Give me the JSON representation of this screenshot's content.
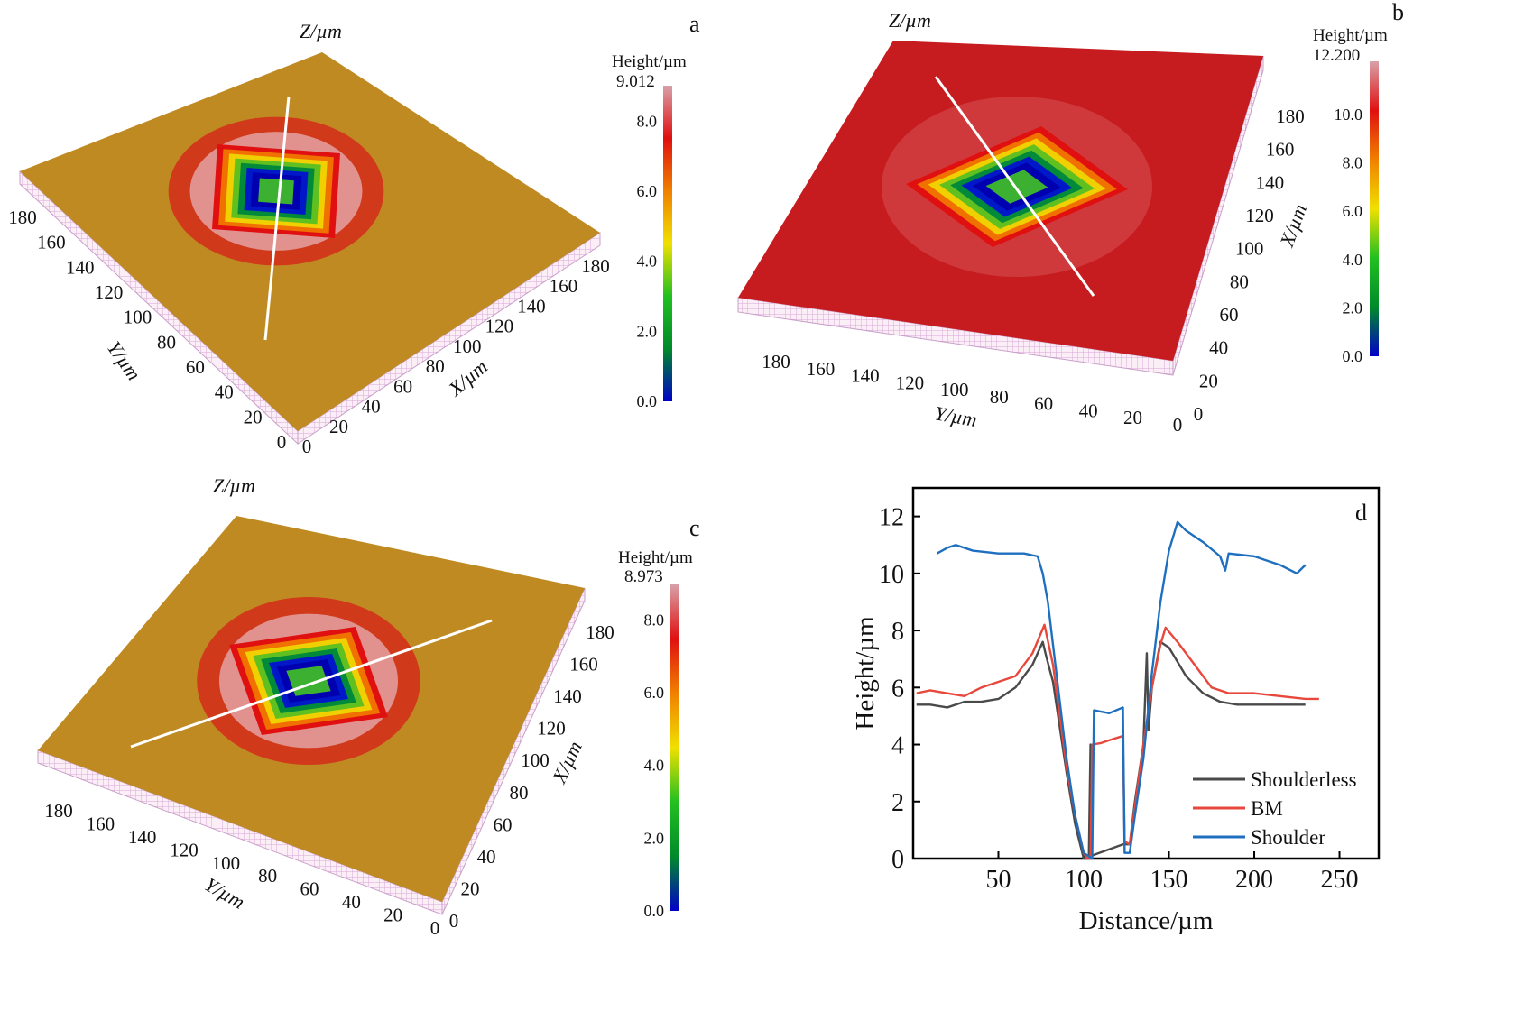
{
  "panels": [
    {
      "id": "a",
      "letter": "a",
      "z_label": "Z/µm",
      "x_label": "X/µm",
      "y_label": "Y/µm",
      "surface_color": "#c08a22",
      "ticks": [
        "0",
        "20",
        "40",
        "60",
        "80",
        "100",
        "120",
        "140",
        "160",
        "180"
      ],
      "colorbar": {
        "title": "Height/µm",
        "max_label": "9.012",
        "ticks": [
          "0.0",
          "2.0",
          "4.0",
          "6.0",
          "8.0"
        ]
      }
    },
    {
      "id": "b",
      "letter": "b",
      "z_label": "Z/µm",
      "x_label": "X/µm",
      "y_label": "Y/µm",
      "surface_color": "#c61c1f",
      "ticks": [
        "0",
        "20",
        "40",
        "60",
        "80",
        "100",
        "120",
        "140",
        "160",
        "180"
      ],
      "colorbar": {
        "title": "Height/µm",
        "max_label": "12.200",
        "ticks": [
          "0.0",
          "2.0",
          "4.0",
          "6.0",
          "8.0",
          "10.0"
        ]
      }
    },
    {
      "id": "c",
      "letter": "c",
      "z_label": "Z/µm",
      "x_label": "X/µm",
      "y_label": "Y/µm",
      "surface_color": "#c08a22",
      "ticks": [
        "0",
        "20",
        "40",
        "60",
        "80",
        "100",
        "120",
        "140",
        "160",
        "180"
      ],
      "colorbar": {
        "title": "Height/µm",
        "max_label": "8.973",
        "ticks": [
          "0.0",
          "2.0",
          "4.0",
          "6.0",
          "8.0"
        ]
      }
    }
  ],
  "colors": {
    "colormap": [
      "#0000c8",
      "#008a2a",
      "#22c020",
      "#f0e000",
      "#f08000",
      "#e01010",
      "#d8a0a8"
    ]
  },
  "chart_data": {
    "type": "line",
    "letter": "d",
    "xlabel": "Distance/µm",
    "ylabel": "Height/µm",
    "xlim": [
      0,
      273
    ],
    "ylim": [
      0,
      13
    ],
    "xticks": [
      50,
      100,
      150,
      200,
      250
    ],
    "yticks": [
      0,
      2,
      4,
      6,
      8,
      10,
      12
    ],
    "grid": false,
    "legend_placement": "bottom-right",
    "series": [
      {
        "name": "Shoulderless",
        "color": "#4a4a4a",
        "points": [
          [
            2,
            5.4
          ],
          [
            10,
            5.4
          ],
          [
            20,
            5.3
          ],
          [
            30,
            5.5
          ],
          [
            40,
            5.5
          ],
          [
            50,
            5.6
          ],
          [
            60,
            6.0
          ],
          [
            70,
            6.8
          ],
          [
            76,
            7.6
          ],
          [
            78,
            7.1
          ],
          [
            82,
            6.2
          ],
          [
            85,
            5.0
          ],
          [
            90,
            3.0
          ],
          [
            95,
            1.2
          ],
          [
            100,
            0
          ],
          [
            103,
            0
          ],
          [
            104,
            4.0
          ],
          [
            104.5,
            0.1
          ],
          [
            123,
            0.5
          ],
          [
            127,
            0.5
          ],
          [
            130,
            2.0
          ],
          [
            135,
            4.0
          ],
          [
            137,
            7.2
          ],
          [
            138,
            4.5
          ],
          [
            140,
            6.0
          ],
          [
            145,
            7.6
          ],
          [
            150,
            7.4
          ],
          [
            160,
            6.4
          ],
          [
            170,
            5.8
          ],
          [
            180,
            5.5
          ],
          [
            190,
            5.4
          ],
          [
            200,
            5.4
          ],
          [
            210,
            5.4
          ],
          [
            220,
            5.4
          ],
          [
            230,
            5.4
          ]
        ]
      },
      {
        "name": "BM",
        "color": "#e8483c",
        "points": [
          [
            2,
            5.8
          ],
          [
            10,
            5.9
          ],
          [
            20,
            5.8
          ],
          [
            30,
            5.7
          ],
          [
            40,
            6.0
          ],
          [
            50,
            6.2
          ],
          [
            60,
            6.4
          ],
          [
            70,
            7.2
          ],
          [
            77,
            8.2
          ],
          [
            82,
            6.8
          ],
          [
            86,
            5.0
          ],
          [
            90,
            3.2
          ],
          [
            95,
            1.5
          ],
          [
            100,
            0.2
          ],
          [
            102,
            0
          ],
          [
            104,
            0
          ],
          [
            105,
            4.0
          ],
          [
            110,
            4.05
          ],
          [
            115,
            4.15
          ],
          [
            123,
            4.3
          ],
          [
            124,
            0.6
          ],
          [
            127,
            0.5
          ],
          [
            130,
            1.8
          ],
          [
            135,
            4.0
          ],
          [
            140,
            6.0
          ],
          [
            145,
            7.5
          ],
          [
            148,
            8.1
          ],
          [
            155,
            7.6
          ],
          [
            165,
            6.8
          ],
          [
            175,
            6.0
          ],
          [
            185,
            5.8
          ],
          [
            200,
            5.8
          ],
          [
            215,
            5.7
          ],
          [
            230,
            5.6
          ],
          [
            238,
            5.6
          ]
        ]
      },
      {
        "name": "Shoulder",
        "color": "#1f6fc0",
        "points": [
          [
            14,
            10.7
          ],
          [
            20,
            10.9
          ],
          [
            25,
            11.0
          ],
          [
            35,
            10.8
          ],
          [
            50,
            10.7
          ],
          [
            65,
            10.7
          ],
          [
            73,
            10.6
          ],
          [
            76,
            10.0
          ],
          [
            79,
            9.0
          ],
          [
            82,
            7.5
          ],
          [
            86,
            5.5
          ],
          [
            90,
            3.5
          ],
          [
            95,
            1.5
          ],
          [
            100,
            0.2
          ],
          [
            105,
            0
          ],
          [
            106,
            5.2
          ],
          [
            115,
            5.1
          ],
          [
            123,
            5.3
          ],
          [
            124,
            0.2
          ],
          [
            127,
            0.2
          ],
          [
            130,
            1.5
          ],
          [
            135,
            3.5
          ],
          [
            140,
            6.5
          ],
          [
            145,
            9.0
          ],
          [
            150,
            10.8
          ],
          [
            155,
            11.8
          ],
          [
            160,
            11.5
          ],
          [
            170,
            11.1
          ],
          [
            180,
            10.6
          ],
          [
            183,
            10.1
          ],
          [
            185,
            10.7
          ],
          [
            200,
            10.6
          ],
          [
            215,
            10.3
          ],
          [
            225,
            10.0
          ],
          [
            230,
            10.3
          ]
        ]
      }
    ]
  }
}
